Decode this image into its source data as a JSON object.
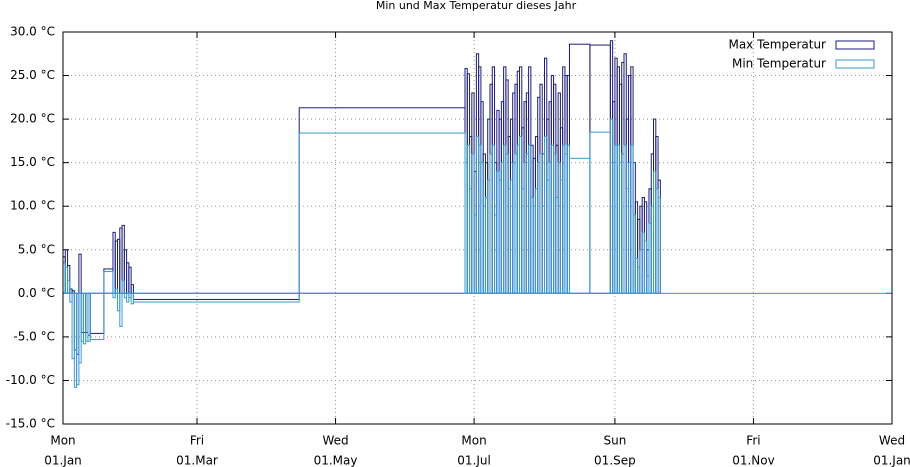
{
  "chart_data": {
    "type": "boxes",
    "title": "Min und Max Temperatur dieses Jahr",
    "x": [
      0,
      1,
      2,
      3,
      4,
      5,
      6,
      7,
      8,
      9,
      10,
      11,
      12,
      18,
      22,
      23,
      24,
      25,
      26,
      27,
      28,
      29,
      30,
      31,
      104,
      177,
      178,
      179,
      180,
      181,
      182,
      183,
      184,
      185,
      186,
      187,
      188,
      189,
      190,
      191,
      192,
      193,
      194,
      195,
      196,
      197,
      198,
      199,
      200,
      201,
      202,
      203,
      204,
      205,
      206,
      207,
      208,
      209,
      210,
      211,
      212,
      213,
      214,
      215,
      216,
      217,
      218,
      219,
      220,
      221,
      222,
      223,
      232,
      241,
      242,
      243,
      244,
      245,
      246,
      247,
      248,
      249,
      250,
      251,
      252,
      253,
      254,
      255,
      256,
      257,
      258,
      259,
      260,
      261,
      262
    ],
    "series": [
      {
        "name": "Max Temperatur",
        "color": "#1c1c78",
        "values": [
          4.2,
          5,
          3.2,
          0.5,
          0.3,
          -6.5,
          -7,
          4.5,
          -4.5,
          -4.5,
          -4.5,
          -4.8,
          -4.6,
          2.8,
          7,
          6,
          6.2,
          7.5,
          7.8,
          5,
          3.5,
          3,
          1,
          -0.7,
          21.3,
          25.8,
          25.2,
          18,
          23,
          14,
          27.5,
          26,
          22,
          16,
          15,
          20,
          24,
          26,
          15,
          21,
          20,
          22,
          26,
          24.5,
          18,
          20,
          23,
          24,
          25.5,
          26,
          19,
          22,
          23,
          26,
          17,
          15.5,
          18,
          22.5,
          24,
          16,
          27,
          20,
          22,
          25,
          24,
          17,
          23,
          19,
          26,
          25,
          25,
          28.6,
          28.5,
          29,
          22,
          27,
          26,
          24,
          26.5,
          27.5,
          20,
          25,
          26,
          15,
          10.5,
          8.5,
          10,
          11,
          10.5,
          5,
          12,
          16,
          20,
          18,
          13
        ]
      },
      {
        "name": "Min Temperatur",
        "color": "#3a9ad0",
        "values": [
          3.5,
          3,
          1.5,
          -1,
          -7.5,
          -10.8,
          -10.5,
          -8,
          -5.5,
          -5.8,
          -5.5,
          -5.5,
          -5.3,
          2.5,
          -0.5,
          0.5,
          -2,
          -3.8,
          1.5,
          -0.5,
          -1,
          -0.5,
          -1.2,
          -1,
          18.4,
          15,
          17,
          12,
          16,
          9,
          18,
          17,
          15,
          10,
          11,
          13,
          16,
          17,
          9,
          14,
          13,
          15,
          17,
          16,
          12,
          13,
          15,
          16,
          17,
          18,
          12,
          15,
          16,
          17,
          11,
          10,
          12,
          15,
          16,
          10,
          18,
          13,
          15,
          17,
          16,
          11,
          15,
          13,
          17,
          16,
          17,
          15.5,
          18.5,
          20,
          15,
          17,
          17,
          15,
          16,
          17,
          12,
          15,
          17,
          9,
          4,
          3,
          5,
          7,
          6,
          2,
          8,
          10,
          14,
          12,
          11
        ]
      }
    ],
    "xlim": [
      0,
      365
    ],
    "xticks": [
      {
        "value": 0,
        "label": [
          "Mon",
          "01.Jan"
        ]
      },
      {
        "value": 59,
        "label": [
          "Fri",
          "01.Mar"
        ]
      },
      {
        "value": 120,
        "label": [
          "Wed",
          "01.May"
        ]
      },
      {
        "value": 181,
        "label": [
          "Mon",
          "01.Jul"
        ]
      },
      {
        "value": 243,
        "label": [
          "Sun",
          "01.Sep"
        ]
      },
      {
        "value": 304,
        "label": [
          "Fri",
          "01.Nov"
        ]
      },
      {
        "value": 365,
        "label": [
          "Wed",
          "01.Jan"
        ]
      }
    ],
    "ylim": [
      -15,
      30
    ],
    "yticks": [
      {
        "value": -15,
        "label": "-15.0 °C"
      },
      {
        "value": -10,
        "label": "-10.0 °C"
      },
      {
        "value": -5,
        "label": "-5.0 °C"
      },
      {
        "value": 0,
        "label": "0.0 °C"
      },
      {
        "value": 5,
        "label": "5.0 °C"
      },
      {
        "value": 10,
        "label": "10.0 °C"
      },
      {
        "value": 15,
        "label": "15.0 °C"
      },
      {
        "value": 20,
        "label": "20.0 °C"
      },
      {
        "value": 25,
        "label": "25.0 °C"
      },
      {
        "value": 30,
        "label": "30.0 °C"
      }
    ],
    "grid": true,
    "legend": "top-right"
  }
}
